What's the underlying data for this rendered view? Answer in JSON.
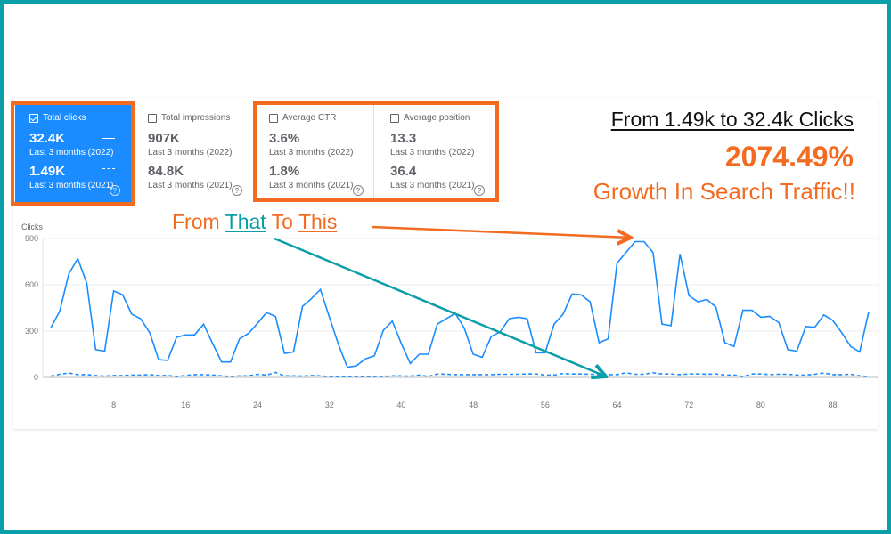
{
  "metrics": [
    {
      "label": "Total clicks",
      "checked": true,
      "v1": "32.4K",
      "s1": "Last 3 months (2022)",
      "v2": "1.49K",
      "s2": "Last 3 months (2021)"
    },
    {
      "label": "Total impressions",
      "checked": false,
      "v1": "907K",
      "s1": "Last 3 months (2022)",
      "v2": "84.8K",
      "s2": "Last 3 months (2021)"
    },
    {
      "label": "Average CTR",
      "checked": false,
      "v1": "3.6%",
      "s1": "Last 3 months (2022)",
      "v2": "1.8%",
      "s2": "Last 3 months (2021)"
    },
    {
      "label": "Average position",
      "checked": false,
      "v1": "13.3",
      "s1": "Last 3 months (2022)",
      "v2": "36.4",
      "s2": "Last 3 months (2021)"
    }
  ],
  "help_glyph": "?",
  "annotation": {
    "headline": "From 1.49k to 32.4k Clicks",
    "percent": "2074.49%",
    "growth": "Growth In Search Traffic!!",
    "from": "From",
    "that": "That",
    "to": "To",
    "this": "This"
  },
  "colors": {
    "accent": "#f26b21",
    "teal": "#0a9ea6",
    "line": "#1a8cff"
  },
  "chart_data": {
    "type": "line",
    "ylabel": "Clicks",
    "ylim": [
      0,
      900
    ],
    "yticks": [
      0,
      300,
      600,
      900
    ],
    "xticks": [
      8,
      16,
      24,
      32,
      40,
      48,
      56,
      64,
      72,
      80,
      88
    ],
    "xrange": [
      1,
      92
    ],
    "series": [
      {
        "name": "Last 3 months (2022)",
        "style": "solid",
        "values": [
          320,
          430,
          670,
          770,
          610,
          180,
          170,
          560,
          535,
          410,
          380,
          290,
          115,
          110,
          260,
          275,
          275,
          345,
          220,
          100,
          100,
          250,
          285,
          350,
          420,
          395,
          155,
          165,
          460,
          510,
          570,
          390,
          215,
          65,
          75,
          120,
          140,
          305,
          365,
          220,
          90,
          150,
          150,
          345,
          380,
          415,
          320,
          150,
          130,
          265,
          295,
          380,
          390,
          380,
          160,
          160,
          345,
          410,
          540,
          535,
          490,
          225,
          250,
          740,
          810,
          880,
          880,
          810,
          345,
          335,
          800,
          530,
          490,
          505,
          455,
          225,
          200,
          435,
          435,
          390,
          395,
          355,
          180,
          170,
          330,
          325,
          405,
          370,
          290,
          200,
          165,
          425
        ]
      },
      {
        "name": "Last 3 months (2021)",
        "style": "dashed",
        "values": [
          8,
          20,
          28,
          18,
          18,
          12,
          8,
          12,
          12,
          15,
          15,
          18,
          12,
          12,
          6,
          12,
          18,
          18,
          15,
          10,
          6,
          10,
          10,
          20,
          15,
          32,
          10,
          10,
          8,
          12,
          10,
          5,
          5,
          5,
          5,
          6,
          6,
          6,
          10,
          10,
          8,
          15,
          6,
          22,
          20,
          18,
          18,
          18,
          18,
          18,
          20,
          20,
          20,
          22,
          22,
          15,
          15,
          25,
          22,
          22,
          20,
          18,
          18,
          18,
          30,
          20,
          20,
          30,
          22,
          22,
          18,
          22,
          22,
          20,
          22,
          15,
          15,
          5,
          22,
          22,
          18,
          20,
          20,
          15,
          15,
          20,
          28,
          18,
          18,
          20,
          10,
          6
        ]
      }
    ]
  }
}
